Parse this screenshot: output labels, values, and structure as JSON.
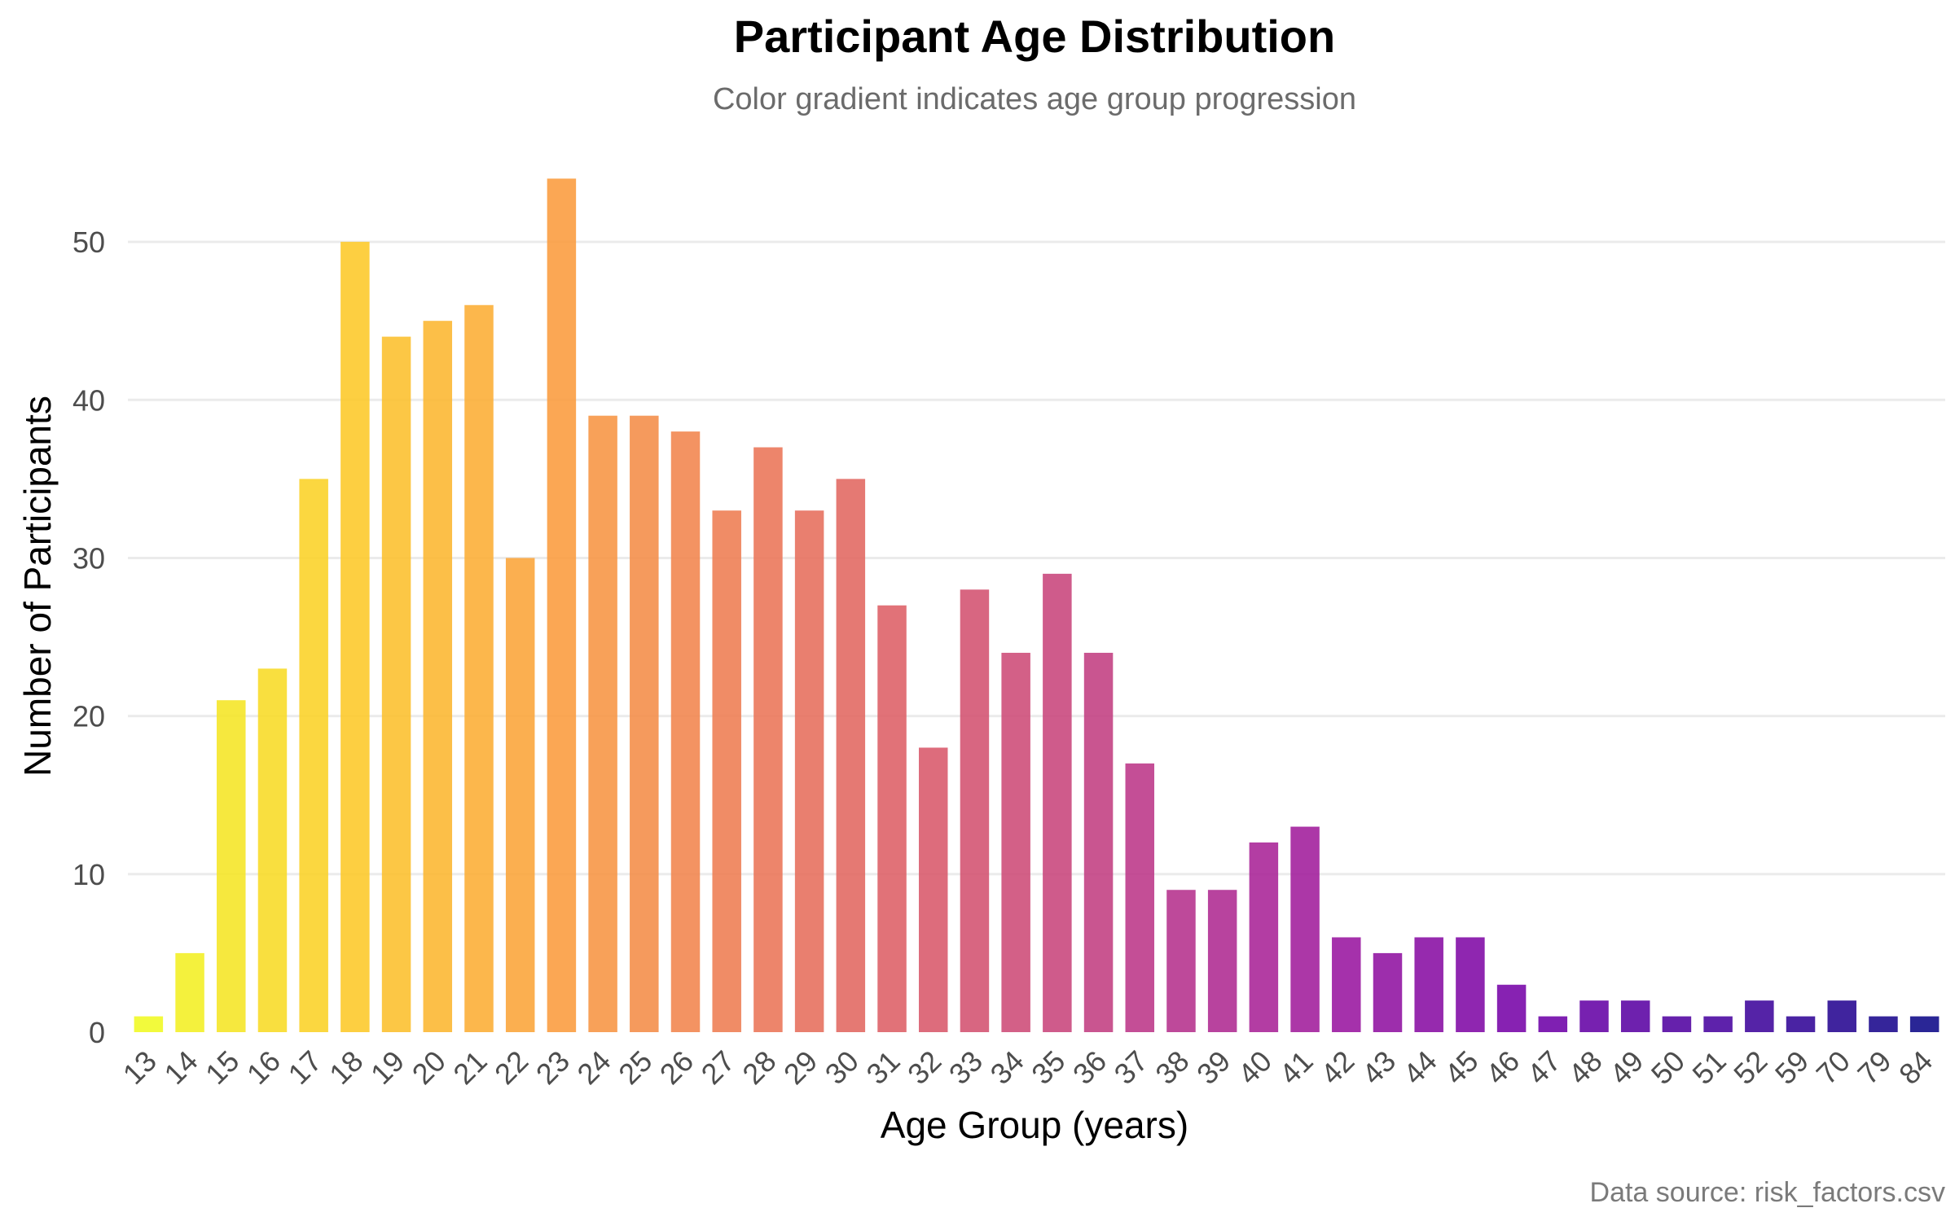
{
  "chart_data": {
    "type": "bar",
    "title": "Participant Age Distribution",
    "subtitle": "Color gradient indicates age group progression",
    "xlabel": "Age Group (years)",
    "ylabel": "Number of Participants",
    "caption": "Data source: risk_factors.csv",
    "categories": [
      "13",
      "14",
      "15",
      "16",
      "17",
      "18",
      "19",
      "20",
      "21",
      "22",
      "23",
      "24",
      "25",
      "26",
      "27",
      "28",
      "29",
      "30",
      "31",
      "32",
      "33",
      "34",
      "35",
      "36",
      "37",
      "38",
      "39",
      "40",
      "41",
      "42",
      "43",
      "44",
      "45",
      "46",
      "47",
      "48",
      "49",
      "50",
      "51",
      "52",
      "59",
      "70",
      "79",
      "84"
    ],
    "values": [
      1,
      5,
      21,
      23,
      35,
      50,
      44,
      45,
      46,
      30,
      54,
      39,
      39,
      38,
      33,
      37,
      33,
      35,
      27,
      18,
      28,
      24,
      29,
      24,
      17,
      9,
      9,
      12,
      13,
      6,
      5,
      6,
      6,
      3,
      1,
      2,
      2,
      1,
      1,
      2,
      1,
      2,
      1,
      1
    ],
    "ylim": [
      0,
      55
    ],
    "yticks": [
      0,
      10,
      20,
      30,
      40,
      50
    ],
    "grid": "horizontal major",
    "legend": "none",
    "colormap": "plasma (yellow to dark blue)",
    "colors": [
      "#f0f921",
      "#fdca26",
      "#fb9f3a",
      "#ed7953",
      "#d8576b",
      "#bd3786",
      "#9c179e",
      "#7201a8",
      "#46039f",
      "#0d0887"
    ]
  }
}
